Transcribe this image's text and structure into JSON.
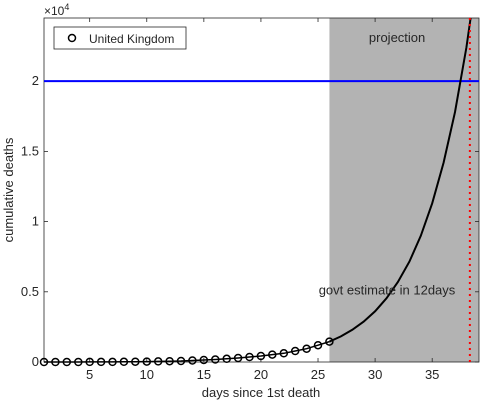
{
  "chart_data": {
    "type": "line",
    "title": "",
    "xlabel": "days since 1st death",
    "ylabel": "cumulative deaths",
    "exponent_label": "×10",
    "exponent_power": "4",
    "xlim": [
      1,
      39.1
    ],
    "ylim": [
      0,
      24500
    ],
    "x_ticks": [
      5,
      10,
      15,
      20,
      25,
      30,
      35
    ],
    "y_ticks": [
      {
        "value": 0,
        "label": "0"
      },
      {
        "value": 5000,
        "label": "0.5"
      },
      {
        "value": 10000,
        "label": "1"
      },
      {
        "value": 15000,
        "label": "1.5"
      },
      {
        "value": 20000,
        "label": "2"
      }
    ],
    "legend": {
      "label": "United Kingdom",
      "position": "top-left"
    },
    "observed": {
      "name": "United Kingdom",
      "x": [
        1,
        2,
        3,
        4,
        5,
        6,
        7,
        8,
        9,
        10,
        11,
        12,
        13,
        14,
        15,
        16,
        17,
        18,
        19,
        20,
        21,
        22,
        23,
        24,
        25,
        26
      ],
      "y": [
        1,
        2,
        2,
        3,
        5,
        6,
        8,
        11,
        18,
        25,
        40,
        55,
        70,
        105,
        145,
        175,
        225,
        285,
        355,
        430,
        530,
        620,
        780,
        950,
        1200,
        1450
      ]
    },
    "projection": {
      "label": "projection",
      "x_start": 26,
      "x_end": 39.1,
      "curve_x": [
        26,
        27,
        28,
        29,
        30,
        31,
        32,
        33,
        34,
        35,
        36,
        37,
        38,
        39
      ],
      "curve_y": [
        1450,
        1820,
        2290,
        2880,
        3610,
        4540,
        5700,
        7150,
        8990,
        11300,
        14200,
        17800,
        22400,
        28100
      ]
    },
    "threshold": {
      "value": 20000,
      "color": "#0000ff"
    },
    "estimate_line": {
      "x": 38.3,
      "label": "govt estimate in 12days",
      "color": "#ff0000"
    }
  }
}
